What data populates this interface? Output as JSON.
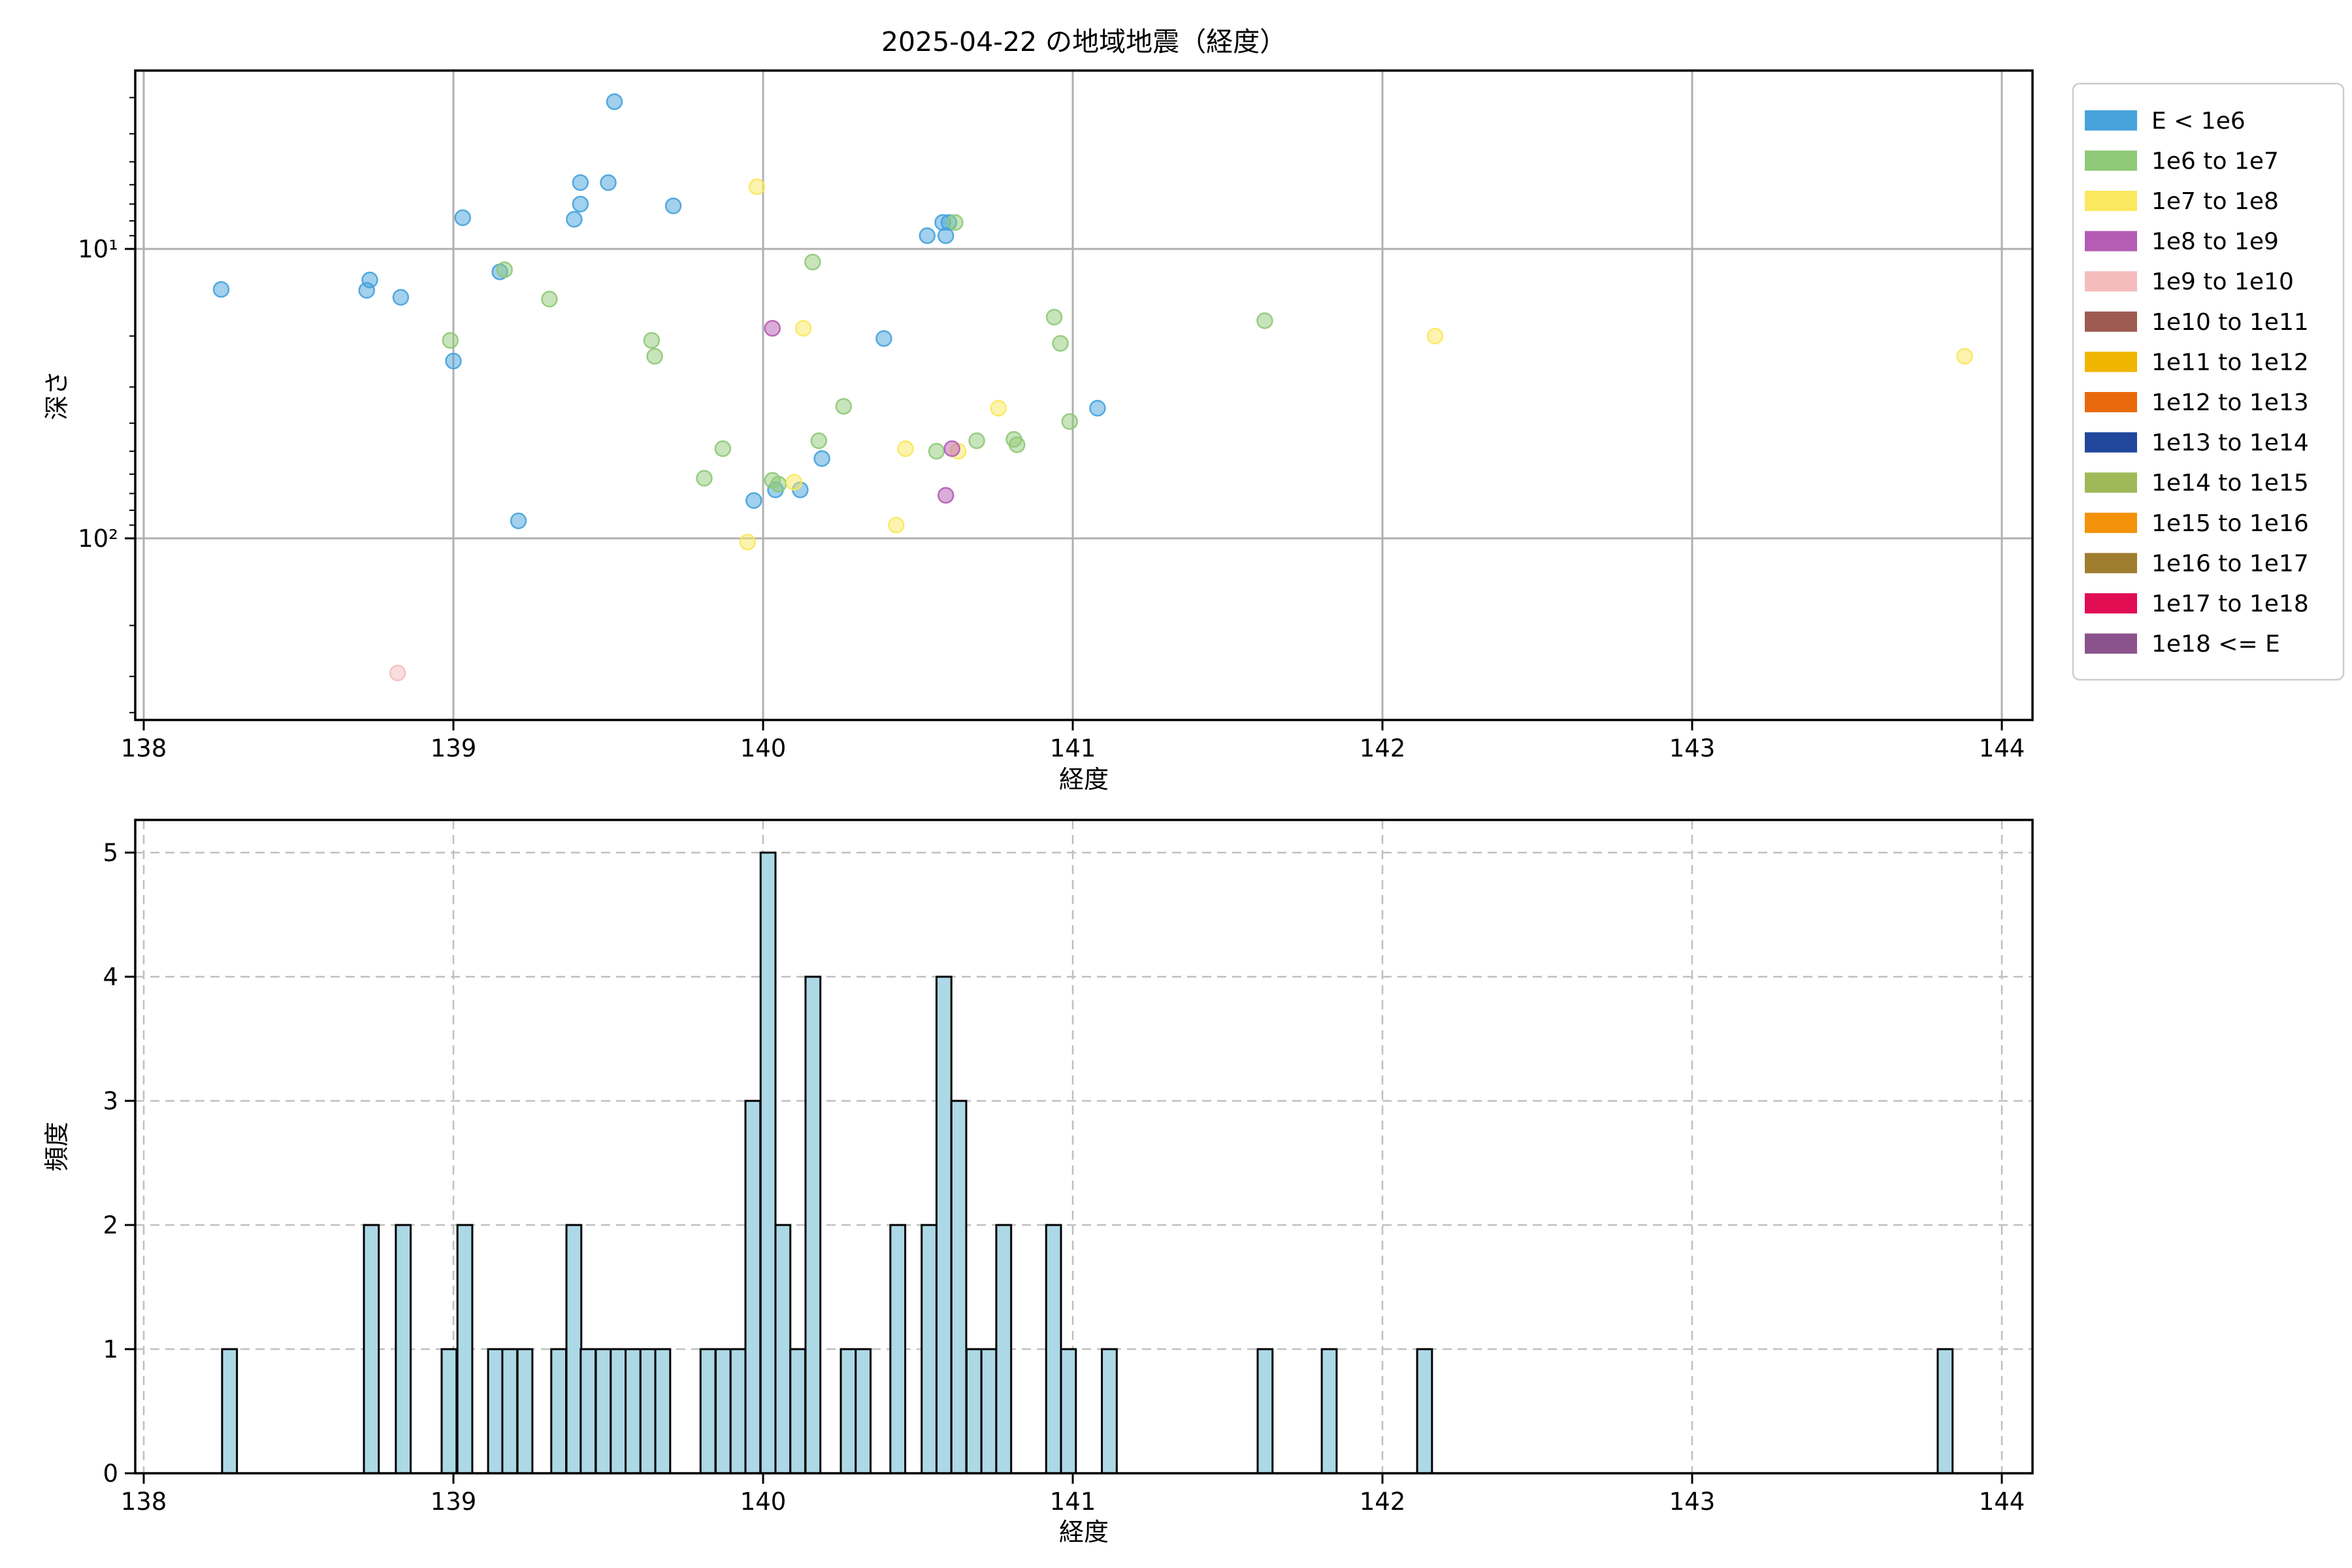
{
  "title": "2025-04-22 の地域地震（経度）",
  "chart_data": [
    {
      "type": "scatter",
      "name": "depth-vs-longitude",
      "title": "2025-04-22 の地域地震（経度）",
      "xlabel": "経度",
      "ylabel": "深さ",
      "xlim": [
        137.973,
        144.103
      ],
      "ylim_depth_log_inverted": [
        2.4,
        425
      ],
      "x_ticks": [
        138,
        139,
        140,
        141,
        142,
        143,
        144
      ],
      "y_ticks": [
        10,
        100
      ],
      "y_ticklabels": [
        "10¹",
        "10²"
      ],
      "y_minor_ticks": [
        3,
        4,
        5,
        6,
        7,
        8,
        9,
        20,
        30,
        40,
        50,
        60,
        70,
        80,
        90,
        200,
        300,
        400
      ],
      "grid": "solid",
      "legend_position": "upper right, outside axes",
      "series": [
        {
          "name": "E < 1e6",
          "color": "#45A2DB",
          "points": [
            [
              139.52,
              3.1
            ],
            [
              139.5,
              5.9
            ],
            [
              139.41,
              5.9
            ],
            [
              139.41,
              7.0
            ],
            [
              139.39,
              7.9
            ],
            [
              139.03,
              7.8
            ],
            [
              139.71,
              7.1
            ],
            [
              140.58,
              8.1
            ],
            [
              140.6,
              8.1
            ],
            [
              140.53,
              9.0
            ],
            [
              140.59,
              9.0
            ],
            [
              139.15,
              12.0
            ],
            [
              138.73,
              12.8
            ],
            [
              138.72,
              13.9
            ],
            [
              138.25,
              13.8
            ],
            [
              138.83,
              14.7
            ],
            [
              140.39,
              20.4
            ],
            [
              139.0,
              24.4
            ],
            [
              141.08,
              35.5
            ],
            [
              140.19,
              53
            ],
            [
              140.04,
              68
            ],
            [
              140.12,
              68
            ],
            [
              139.97,
              74
            ],
            [
              139.21,
              87
            ]
          ]
        },
        {
          "name": "1e6 to 1e7",
          "color": "#8FC977",
          "points": [
            [
              139.165,
              11.8
            ],
            [
              139.31,
              14.9
            ],
            [
              140.62,
              8.1
            ],
            [
              140.16,
              11.1
            ],
            [
              138.99,
              20.7
            ],
            [
              139.64,
              20.7
            ],
            [
              139.65,
              23.5
            ],
            [
              140.94,
              17.2
            ],
            [
              140.96,
              21.2
            ],
            [
              141.62,
              17.7
            ],
            [
              140.26,
              35
            ],
            [
              140.99,
              39.5
            ],
            [
              139.87,
              49
            ],
            [
              140.18,
              46
            ],
            [
              140.56,
              50
            ],
            [
              140.69,
              46
            ],
            [
              140.81,
              45.5
            ],
            [
              140.82,
              47.5
            ],
            [
              139.81,
              62
            ],
            [
              140.03,
              63
            ],
            [
              140.05,
              65
            ]
          ]
        },
        {
          "name": "1e7 to 1e8",
          "color": "#FAE85E",
          "points": [
            [
              139.98,
              6.1
            ],
            [
              140.13,
              18.8
            ],
            [
              142.17,
              20
            ],
            [
              143.88,
              23.5
            ],
            [
              140.76,
              35.5
            ],
            [
              140.46,
              49
            ],
            [
              140.63,
              50
            ],
            [
              140.1,
              64
            ],
            [
              140.43,
              90
            ],
            [
              139.95,
              103
            ]
          ]
        },
        {
          "name": "1e8 to 1e9",
          "color": "#B55CB4",
          "points": [
            [
              140.03,
              18.8
            ],
            [
              140.61,
              49
            ],
            [
              140.59,
              71
            ]
          ]
        },
        {
          "name": "1e9 to 1e10",
          "color": "#F5BCBD",
          "points": [
            [
              138.82,
              292
            ]
          ]
        },
        {
          "name": "1e10 to 1e11",
          "color": "#9D5B52",
          "points": []
        },
        {
          "name": "1e11 to 1e12",
          "color": "#F0B501",
          "points": []
        },
        {
          "name": "1e12 to 1e13",
          "color": "#E8690B",
          "points": []
        },
        {
          "name": "1e13 to 1e14",
          "color": "#20479B",
          "points": []
        },
        {
          "name": "1e14 to 1e15",
          "color": "#9FB959",
          "points": []
        },
        {
          "name": "1e15 to 1e16",
          "color": "#F39208",
          "points": []
        },
        {
          "name": "1e16 to 1e17",
          "color": "#9F7D2E",
          "points": []
        },
        {
          "name": "1e17 to 1e18",
          "color": "#E00D53",
          "points": []
        },
        {
          "name": "1e18 <= E",
          "color": "#8B538B",
          "points": []
        }
      ]
    },
    {
      "type": "bar",
      "name": "longitude-histogram",
      "xlabel": "経度",
      "ylabel": "頻度",
      "xlim": [
        137.973,
        144.103
      ],
      "ylim": [
        0,
        5.26
      ],
      "x_ticks": [
        138,
        139,
        140,
        141,
        142,
        143,
        144
      ],
      "y_ticks": [
        0,
        1,
        2,
        3,
        4,
        5
      ],
      "grid": "dashed",
      "bar_color": "#ADD8E6",
      "bar_edge_color": "#000000",
      "bin_width": 0.048,
      "bars": [
        {
          "x": 138.253,
          "count": 1
        },
        {
          "x": 138.711,
          "count": 2
        },
        {
          "x": 138.814,
          "count": 2
        },
        {
          "x": 138.962,
          "count": 1
        },
        {
          "x": 139.013,
          "count": 2
        },
        {
          "x": 139.112,
          "count": 1
        },
        {
          "x": 139.158,
          "count": 1
        },
        {
          "x": 139.207,
          "count": 1
        },
        {
          "x": 139.316,
          "count": 1
        },
        {
          "x": 139.365,
          "count": 2
        },
        {
          "x": 139.411,
          "count": 1
        },
        {
          "x": 139.46,
          "count": 1
        },
        {
          "x": 139.508,
          "count": 1
        },
        {
          "x": 139.556,
          "count": 1
        },
        {
          "x": 139.604,
          "count": 1
        },
        {
          "x": 139.652,
          "count": 1
        },
        {
          "x": 139.798,
          "count": 1
        },
        {
          "x": 139.847,
          "count": 1
        },
        {
          "x": 139.895,
          "count": 1
        },
        {
          "x": 139.943,
          "count": 3
        },
        {
          "x": 139.992,
          "count": 5
        },
        {
          "x": 140.04,
          "count": 2
        },
        {
          "x": 140.088,
          "count": 1
        },
        {
          "x": 140.137,
          "count": 4
        },
        {
          "x": 140.251,
          "count": 1
        },
        {
          "x": 140.299,
          "count": 1
        },
        {
          "x": 140.411,
          "count": 2
        },
        {
          "x": 140.512,
          "count": 2
        },
        {
          "x": 140.56,
          "count": 4
        },
        {
          "x": 140.608,
          "count": 3
        },
        {
          "x": 140.657,
          "count": 1
        },
        {
          "x": 140.705,
          "count": 1
        },
        {
          "x": 140.753,
          "count": 2
        },
        {
          "x": 140.914,
          "count": 2
        },
        {
          "x": 140.962,
          "count": 1
        },
        {
          "x": 141.094,
          "count": 1
        },
        {
          "x": 141.597,
          "count": 1
        },
        {
          "x": 141.804,
          "count": 1
        },
        {
          "x": 142.112,
          "count": 1
        },
        {
          "x": 143.793,
          "count": 1
        }
      ]
    }
  ],
  "legend": {
    "entries": [
      {
        "label": "E < 1e6",
        "color": "#45A2DB"
      },
      {
        "label": "1e6 to 1e7",
        "color": "#8FC977"
      },
      {
        "label": "1e7 to 1e8",
        "color": "#FAE85E"
      },
      {
        "label": "1e8 to 1e9",
        "color": "#B55CB4"
      },
      {
        "label": "1e9 to 1e10",
        "color": "#F5BCBD"
      },
      {
        "label": "1e10 to 1e11",
        "color": "#9D5B52"
      },
      {
        "label": "1e11 to 1e12",
        "color": "#F0B501"
      },
      {
        "label": "1e12 to 1e13",
        "color": "#E8690B"
      },
      {
        "label": "1e13 to 1e14",
        "color": "#20479B"
      },
      {
        "label": "1e14 to 1e15",
        "color": "#9FB959"
      },
      {
        "label": "1e15 to 1e16",
        "color": "#F39208"
      },
      {
        "label": "1e16 to 1e17",
        "color": "#9F7D2E"
      },
      {
        "label": "1e17 to 1e18",
        "color": "#E00D53"
      },
      {
        "label": "1e18 <= E",
        "color": "#8B538B"
      }
    ]
  }
}
